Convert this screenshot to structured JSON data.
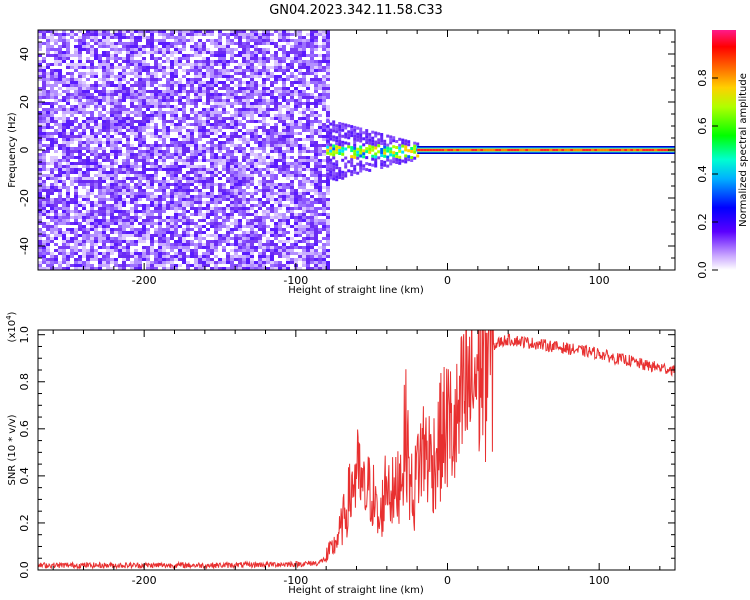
{
  "title": "GN04.2023.342.11.58.C33",
  "chart_data": [
    {
      "type": "heatmap",
      "xlabel": "Height of straight line (km)",
      "ylabel": "Frequency (Hz)",
      "xlim": [
        -270,
        150
      ],
      "ylim": [
        -50,
        50
      ],
      "xticks": [
        "-200",
        "-100",
        "0",
        "100"
      ],
      "yticks": [
        "-40",
        "-20",
        "0",
        "20",
        "40"
      ],
      "colorbar": {
        "label": "Normalized spectral amplitude",
        "range": [
          0,
          1
        ],
        "ticks": [
          "0.0",
          "0.2",
          "0.4",
          "0.6",
          "0.8"
        ]
      },
      "regions": [
        {
          "description_x_range": [
            -270,
            -80
          ],
          "frequency_range": [
            -50,
            50
          ],
          "amplitude": "low broadband noise"
        },
        {
          "description_x_range": [
            -80,
            -20
          ],
          "frequency_range": [
            -5,
            5
          ],
          "amplitude": "rising, narrowband near 0 Hz"
        },
        {
          "description_x_range": [
            -20,
            150
          ],
          "frequency_range": [
            -1,
            1
          ],
          "amplitude": "high, line at 0 Hz"
        }
      ]
    },
    {
      "type": "line",
      "xlabel": "Height of straight line (km)",
      "ylabel": "SNR (10 * v/v)",
      "ylabel_scale": "(x10",
      "ylabel_scale_exp": "4",
      "ylabel_scale_close": ")",
      "xlim": [
        -270,
        150
      ],
      "ylim": [
        0,
        1.02
      ],
      "xticks": [
        "-200",
        "-100",
        "0",
        "100"
      ],
      "yticks": [
        "0.0",
        "0.2",
        "0.4",
        "0.6",
        "0.8",
        "1.0"
      ],
      "series": [
        {
          "color": "#e83030",
          "x": [
            -270,
            -200,
            -150,
            -100,
            -85,
            -80,
            -75,
            -70,
            -65,
            -60,
            -55,
            -50,
            -45,
            -40,
            -35,
            -30,
            -27,
            -25,
            -22,
            -20,
            -15,
            -10,
            -5,
            0,
            5,
            10,
            15,
            20,
            25,
            30,
            35,
            40,
            50,
            60,
            70,
            80,
            90,
            100,
            110,
            120,
            130,
            140,
            150
          ],
          "y": [
            0.02,
            0.02,
            0.02,
            0.025,
            0.03,
            0.05,
            0.1,
            0.18,
            0.3,
            0.42,
            0.32,
            0.35,
            0.18,
            0.4,
            0.3,
            0.45,
            0.6,
            0.38,
            0.3,
            0.45,
            0.52,
            0.45,
            0.55,
            0.62,
            0.58,
            0.7,
            0.78,
            0.85,
            0.9,
            0.95,
            0.97,
            0.98,
            0.97,
            0.96,
            0.95,
            0.94,
            0.93,
            0.92,
            0.9,
            0.89,
            0.87,
            0.86,
            0.85
          ]
        }
      ]
    }
  ]
}
